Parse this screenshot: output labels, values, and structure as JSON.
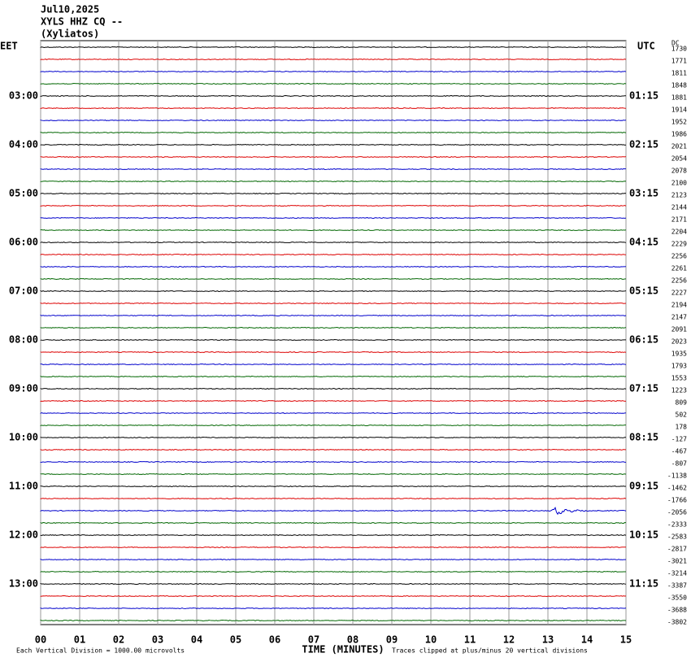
{
  "header": {
    "date": "Jul10,2025",
    "station": "XYLS HHZ CQ --",
    "location": "(Xyliatos)"
  },
  "left_zone": "EET",
  "right_zone": "UTC",
  "dc_label": "DC",
  "left_times": [
    "03:00",
    "04:00",
    "05:00",
    "06:00",
    "07:00",
    "08:00",
    "09:00",
    "10:00",
    "11:00",
    "12:00",
    "13:00"
  ],
  "right_times": [
    "01:15",
    "02:15",
    "03:15",
    "04:15",
    "05:15",
    "06:15",
    "07:15",
    "08:15",
    "09:15",
    "10:15",
    "11:15"
  ],
  "dc_values": [
    1730,
    1771,
    1811,
    1848,
    1881,
    1914,
    1952,
    1986,
    2021,
    2054,
    2078,
    2100,
    2123,
    2144,
    2171,
    2204,
    2229,
    2256,
    2261,
    2256,
    2227,
    2194,
    2147,
    2091,
    2023,
    1935,
    1793,
    1553,
    1223,
    809,
    502,
    178,
    -127,
    -467,
    -807,
    -1138,
    -1462,
    -1766,
    -2056,
    -2333,
    -2583,
    -2817,
    -3021,
    -3214,
    -3387,
    -3550,
    -3688,
    -3802
  ],
  "x_ticks": [
    "00",
    "01",
    "02",
    "03",
    "04",
    "05",
    "06",
    "07",
    "08",
    "09",
    "10",
    "11",
    "12",
    "13",
    "14",
    "15"
  ],
  "x_label": "TIME (MINUTES)",
  "footer_left": "Each Vertical Division = 1000.00 microvolts",
  "footer_right": "Traces clipped at plus/minus 20 vertical divisions"
}
